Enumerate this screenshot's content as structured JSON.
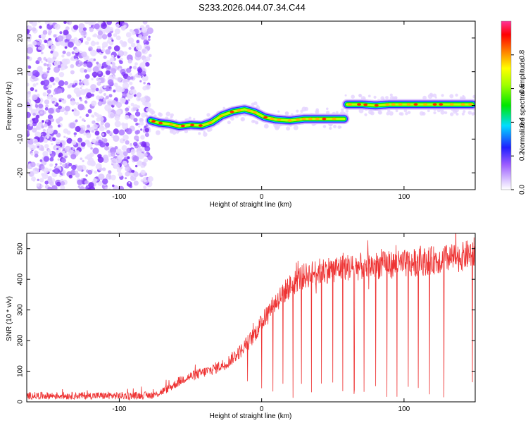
{
  "title": "S233.2026.044.07.34.C44",
  "chart_data": [
    {
      "type": "heatmap",
      "name": "spectrogram",
      "xlabel": "Height of straight line (km)",
      "ylabel": "Frequency (Hz)",
      "xlim": [
        -165,
        150
      ],
      "ylim": [
        -25,
        25
      ],
      "xticks": [
        -100,
        0,
        100
      ],
      "yticks": [
        -20,
        -10,
        0,
        10,
        20
      ],
      "colorbar": {
        "label": "Normalized spectral amplitude",
        "range": [
          0,
          1
        ],
        "ticks": [
          0.0,
          0.2,
          0.4,
          0.6,
          0.8
        ],
        "tick_labels": [
          "0.0",
          "0.2",
          "0.4",
          "0.6",
          "0.8"
        ]
      },
      "noise_region_x": [
        -165,
        -78
      ],
      "track_segments": [
        {
          "x": [
            -78,
            -72,
            -65,
            -58,
            -50,
            -42,
            -35,
            -28,
            -20,
            -12,
            -5,
            2,
            10,
            20,
            30,
            45,
            58
          ],
          "y": [
            -4.5,
            -5.2,
            -5.5,
            -6.2,
            -5.8,
            -6.0,
            -5.0,
            -3.0,
            -1.8,
            -1.2,
            -2.0,
            -3.5,
            -4.2,
            -4.5,
            -4.0,
            -4.0,
            -4.0
          ]
        },
        {
          "x": [
            60,
            70,
            80,
            90,
            100,
            110,
            120,
            130,
            148
          ],
          "y": [
            0.3,
            0.3,
            0.0,
            0.3,
            0.3,
            0.3,
            0.3,
            0.3,
            0.3
          ]
        }
      ]
    },
    {
      "type": "line",
      "name": "snr",
      "xlabel": "Height of straight line (km)",
      "ylabel": "SNR (10 * v/v)",
      "xlim": [
        -165,
        150
      ],
      "ylim": [
        0,
        550
      ],
      "xticks": [
        -100,
        0,
        100
      ],
      "yticks": [
        0,
        100,
        200,
        300,
        400,
        500
      ],
      "series": [
        {
          "name": "SNR",
          "x": [
            -165,
            -120,
            -90,
            -75,
            -65,
            -55,
            -45,
            -35,
            -25,
            -15,
            -5,
            5,
            15,
            25,
            35,
            45,
            55,
            65,
            80,
            100,
            120,
            140,
            150
          ],
          "values": [
            20,
            20,
            20,
            22,
            45,
            75,
            90,
            105,
            125,
            165,
            220,
            295,
            355,
            400,
            420,
            430,
            437,
            440,
            445,
            450,
            462,
            472,
            490
          ]
        }
      ],
      "dropout_x": [
        -10,
        0,
        8,
        15,
        22,
        28,
        35,
        42,
        50,
        57,
        65,
        72,
        80,
        88,
        95,
        103,
        110,
        118,
        128,
        148
      ]
    }
  ]
}
